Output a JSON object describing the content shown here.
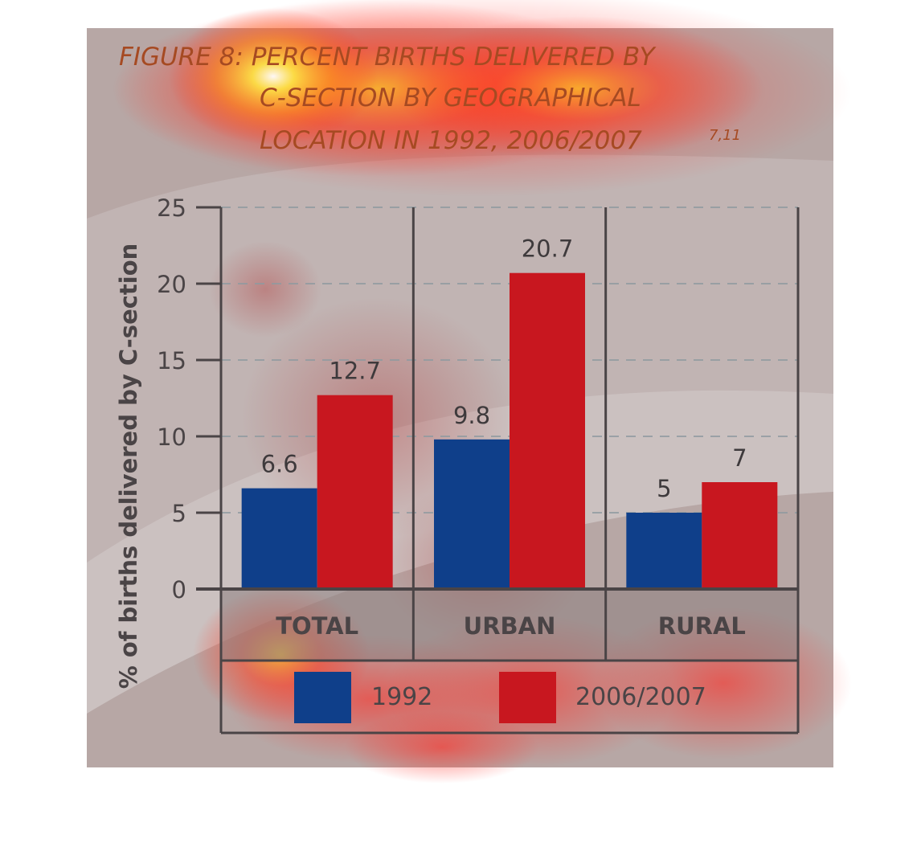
{
  "chart_data": {
    "type": "bar",
    "title": {
      "line1": "FIGURE 8: PERCENT BIRTHS DELIVERED BY",
      "line2": "C-SECTION BY GEOGRAPHICAL",
      "line3": "LOCATION IN 1992, 2006/2007",
      "superscript": "7,11"
    },
    "ylabel": "% of births delivered by C-section",
    "ylim": [
      0,
      25
    ],
    "yticks": [
      "0",
      "5",
      "10",
      "15",
      "20",
      "25"
    ],
    "categories": [
      "TOTAL",
      "URBAN",
      "RURAL"
    ],
    "series": [
      {
        "name": "1992",
        "values": [
          6.6,
          9.8,
          5
        ],
        "labels": [
          "6.6",
          "9.8",
          "5"
        ],
        "color": "#0f3f8a"
      },
      {
        "name": "2006/2007",
        "values": [
          12.7,
          20.7,
          7
        ],
        "labels": [
          "12.7",
          "20.7",
          "7"
        ],
        "color": "#c8171f"
      }
    ],
    "grid": true,
    "legend_placement": "bottom",
    "overlay": "attention heatmap"
  }
}
